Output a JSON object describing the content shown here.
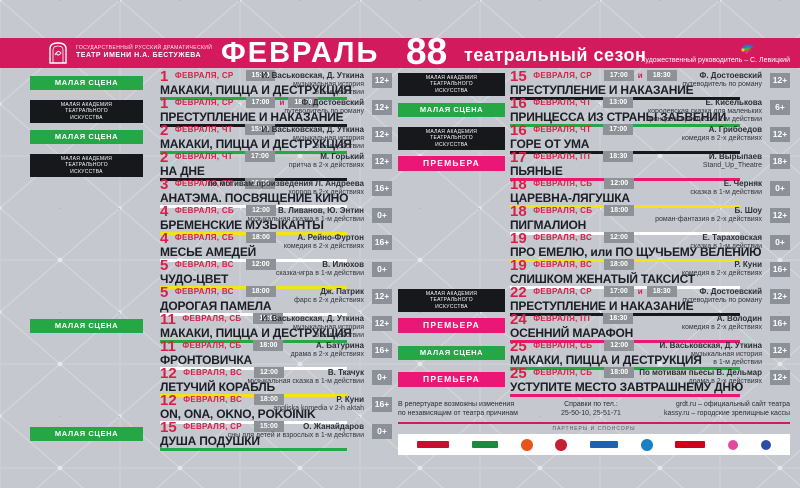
{
  "header": {
    "theater_name_line1": "ГОСУДАРСТВЕННЫЙ РУССКИЙ ДРАМАТИЧЕСКИЙ",
    "theater_name_line2": "ТЕАТР ИМЕНИ Н.А. БЕСТУЖЕВА",
    "month": "ФЕВРАЛЬ",
    "season_number": "88",
    "season_label": "театральный сезон",
    "director_note": "Художественный руководитель – С. Левицкий"
  },
  "labels": {
    "small_stage": "МАЛАЯ СЦЕНА",
    "academy": "МАЛАЯ АКАДЕМИЯ\nТЕАТРАЛЬНОГО\nИСКУССТВА",
    "premiere": "ПРЕМЬЕРА"
  },
  "time_joiner": "и",
  "colors": {
    "header_bar": "#d21a5c",
    "date_red": "#d91f47",
    "small_stage_green": "#25a746",
    "premiere_pink": "#ea1777",
    "academy_black": "#17181c",
    "underline": {
      "green": "#25a746",
      "black": "#17181c",
      "white": "#ffffff",
      "yellow": "#f3e318",
      "pink": "#ea1777"
    }
  },
  "columns": {
    "left": [
      {
        "day": "1",
        "date_suffix": "ФЕВРАЛЯ, СР",
        "times": [
          "15:00"
        ],
        "title": "МАКАКИ, ПИЦЦА И ДЕСТРУКЦИЯ",
        "author": "И. Васьковская, Д. Уткина",
        "desc": "музыкальная история\nв 1-м действии",
        "age": "12+",
        "tag": "small_stage",
        "underline": "green"
      },
      {
        "day": "1",
        "date_suffix": "ФЕВРАЛЯ, СР",
        "times": [
          "17:00",
          "18:30"
        ],
        "title": "ПРЕСТУПЛЕНИЕ И НАКАЗАНИЕ",
        "author": "Ф. Достоевский",
        "desc": "путеводитель по роману",
        "age": "12+",
        "tag": "academy",
        "underline": "black"
      },
      {
        "day": "2",
        "date_suffix": "ФЕВРАЛЯ, ЧТ",
        "times": [
          "15:00"
        ],
        "title": "МАКАКИ, ПИЦЦА И ДЕСТРУКЦИЯ",
        "author": "И. Васьковская, Д. Уткина",
        "desc": "музыкальная история\nв 1-м действии",
        "age": "12+",
        "tag": "small_stage",
        "underline": "green"
      },
      {
        "day": "2",
        "date_suffix": "ФЕВРАЛЯ, ЧТ",
        "times": [
          "17:00"
        ],
        "title": "НА ДНЕ",
        "author": "М. Горький",
        "desc": "притча в 2-х действиях",
        "age": "12+",
        "tag": "academy",
        "underline": "black"
      },
      {
        "day": "3",
        "date_suffix": "ФЕВРАЛЯ, ПТ",
        "times": [
          "18:30"
        ],
        "title": "АНАТЭМА. ПОСВЯЩЕНИЕ КИНО",
        "author": "по мотивам произведения Л. Андреева",
        "desc": "хоррор в 2-х действиях",
        "age": "16+",
        "tag": null,
        "underline": "white"
      },
      {
        "day": "4",
        "date_suffix": "ФЕВРАЛЯ, СБ",
        "times": [
          "12:00"
        ],
        "title": "БРЕМЕНСКИЕ МУЗЫКАНТЫ",
        "author": "В. Ливанов, Ю. Энтин",
        "desc": "музыкальная сказка в 1-м действии",
        "age": "0+",
        "tag": null,
        "underline": "yellow"
      },
      {
        "day": "4",
        "date_suffix": "ФЕВРАЛЯ, СБ",
        "times": [
          "18:00"
        ],
        "title": "МЕСЬЕ АМЕДЕЙ",
        "author": "А. Рейно-Фуртон",
        "desc": "комедия в 2-х действиях",
        "age": "16+",
        "tag": null,
        "underline": "white"
      },
      {
        "day": "5",
        "date_suffix": "ФЕВРАЛЯ, ВС",
        "times": [
          "12:00"
        ],
        "title": "ЧУДО-ЦВЕТ",
        "author": "В. Илюхов",
        "desc": "сказка-игра в 1-м действии",
        "age": "0+",
        "tag": null,
        "underline": "yellow"
      },
      {
        "day": "5",
        "date_suffix": "ФЕВРАЛЯ, ВС",
        "times": [
          "18:00"
        ],
        "title": "ДОРОГАЯ ПАМЕЛА",
        "author": "Дж. Патрик",
        "desc": "фарс в 2-х действиях",
        "age": "12+",
        "tag": null,
        "underline": "white"
      },
      {
        "day": "11",
        "date_suffix": "ФЕВРАЛЯ, СБ",
        "times": [
          "12:00"
        ],
        "title": "МАКАКИ, ПИЦЦА И ДЕСТРУКЦИЯ",
        "author": "И. Васьковская, Д. Уткина",
        "desc": "музыкальная история\nв 1-м действии",
        "age": "12+",
        "tag": "small_stage",
        "underline": "green"
      },
      {
        "day": "11",
        "date_suffix": "ФЕВРАЛЯ, СБ",
        "times": [
          "18:00"
        ],
        "title": "ФРОНТОВИЧКА",
        "author": "А. Батурина",
        "desc": "драма в 2-х действиях",
        "age": "16+",
        "tag": null,
        "underline": "white"
      },
      {
        "day": "12",
        "date_suffix": "ФЕВРАЛЯ, ВС",
        "times": [
          "12:00"
        ],
        "title": "ЛЕТУЧИЙ КОРАБЛЬ",
        "author": "В. Ткачук",
        "desc": "музыкальная сказка в 1-м действии",
        "age": "0+",
        "tag": null,
        "underline": "yellow"
      },
      {
        "day": "12",
        "date_suffix": "ФЕВРАЛЯ, ВС",
        "times": [
          "18:00"
        ],
        "title": "ON, ONA, OKNO, POKOINIK",
        "author": "Р. Куни",
        "desc": "angliska komedia v 2-h aktah",
        "age": "16+",
        "tag": null,
        "underline": "white"
      },
      {
        "day": "15",
        "date_suffix": "ФЕВРАЛЯ, СР",
        "times": [
          "15:00"
        ],
        "title": "ДУША ПОДУШКИ",
        "author": "О. Жанайдаров",
        "desc": "сны для детей и взрослых в 1-м действии",
        "age": "0+",
        "tag": "small_stage",
        "underline": "green"
      }
    ],
    "right": [
      {
        "day": "15",
        "date_suffix": "ФЕВРАЛЯ, СР",
        "times": [
          "17:00",
          "18:30"
        ],
        "title": "ПРЕСТУПЛЕНИЕ И НАКАЗАНИЕ",
        "author": "Ф. Достоевский",
        "desc": "путеводитель по роману",
        "age": "12+",
        "tag": "academy",
        "underline": "black"
      },
      {
        "day": "16",
        "date_suffix": "ФЕВРАЛЯ, ЧТ",
        "times": [
          "13:00"
        ],
        "title": "ПРИНЦЕССА ИЗ СТРАНЫ ЗАБВЕНИИ",
        "author": "Е. Киселькова",
        "desc": "королевская сказка для маленьких\nпринцев и принцесс в 1-м действии",
        "age": "6+",
        "tag": "small_stage",
        "underline": "green"
      },
      {
        "day": "16",
        "date_suffix": "ФЕВРАЛЯ, ЧТ",
        "times": [
          "17:00"
        ],
        "title": "ГОРЕ ОТ УМА",
        "author": "А. Грибоедов",
        "desc": "комедия в 2-х действиях",
        "age": "12+",
        "tag": "academy",
        "underline": "black"
      },
      {
        "day": "17",
        "date_suffix": "ФЕВРАЛЯ, ПТ",
        "times": [
          "18:30"
        ],
        "title": "ПЬЯНЫЕ",
        "author": "И. Вырыпаев",
        "desc": "Stand_Up_Theatre",
        "age": "18+",
        "tag": "premiere",
        "underline": "pink"
      },
      {
        "day": "18",
        "date_suffix": "ФЕВРАЛЯ, СБ",
        "times": [
          "12:00"
        ],
        "title": "ЦАРЕВНА-ЛЯГУШКА",
        "author": "Е. Черняк",
        "desc": "сказка в 1-м действии",
        "age": "0+",
        "tag": null,
        "underline": "yellow"
      },
      {
        "day": "18",
        "date_suffix": "ФЕВРАЛЯ, СБ",
        "times": [
          "18:00"
        ],
        "title": "ПИГМАЛИОН",
        "author": "Б. Шоу",
        "desc": "роман-фантазия в 2-х действиях",
        "age": "12+",
        "tag": null,
        "underline": "white"
      },
      {
        "day": "19",
        "date_suffix": "ФЕВРАЛЯ, ВС",
        "times": [
          "12:00"
        ],
        "title": "ПРО ЕМЕЛЮ, или ПО ЩУЧЬЕМУ ВЕЛЕНИЮ",
        "author": "Е. Тараховская",
        "desc": "сказка в 1-м действии",
        "age": "0+",
        "tag": null,
        "underline": "yellow"
      },
      {
        "day": "19",
        "date_suffix": "ФЕВРАЛЯ, ВС",
        "times": [
          "18:00"
        ],
        "title": "СЛИШКОМ ЖЕНАТЫЙ ТАКСИСТ",
        "author": "Р. Куни",
        "desc": "комедия в 2-х действиях",
        "age": "16+",
        "tag": null,
        "underline": "white"
      },
      {
        "day": "22",
        "date_suffix": "ФЕВРАЛЯ, СР",
        "times": [
          "17:00",
          "18:30"
        ],
        "title": "ПРЕСТУПЛЕНИЕ И НАКАЗАНИЕ",
        "author": "Ф. Достоевский",
        "desc": "путеводитель по роману",
        "age": "12+",
        "tag": "academy",
        "underline": "black"
      },
      {
        "day": "24",
        "date_suffix": "ФЕВРАЛЯ, ПТ",
        "times": [
          "18:30"
        ],
        "title": "ОСЕННИЙ МАРАФОН",
        "author": "А. Володин",
        "desc": "комедия в 2-х действиях",
        "age": "16+",
        "tag": "premiere",
        "underline": "pink"
      },
      {
        "day": "25",
        "date_suffix": "ФЕВРАЛЯ, СБ",
        "times": [
          "12:00"
        ],
        "title": "МАКАКИ, ПИЦЦА И ДЕСТРУКЦИЯ",
        "author": "И. Васьковская, Д. Уткина",
        "desc": "музыкальная история\nв 1-м действии",
        "age": "12+",
        "tag": "small_stage",
        "underline": "green"
      },
      {
        "day": "25",
        "date_suffix": "ФЕВРАЛЯ, СБ",
        "times": [
          "18:00"
        ],
        "title": "УСТУПИТЕ МЕСТО ЗАВТРАШНЕМУ ДНЮ",
        "author": "По мотивам пьесы В. Дельмар",
        "desc": "драма в 2-х действиях",
        "age": "12+",
        "tag": "premiere",
        "underline": "pink"
      }
    ]
  },
  "footer": {
    "note": "В репертуаре возможны изменения\nпо независящим от театра причинам",
    "phones": "Справки по тел.:\n25-50-10, 25-51-71",
    "sites": "grdt.ru – официальный сайт театра\nkassy.ru – городские зрелищные кассы",
    "partners_label": "ПАРТНЕРЫ И СПОНСОРЫ",
    "sponsor_logos": [
      {
        "name": "sponsor-red-wordmark",
        "shape": "rect",
        "color": "#c8102e",
        "w": 32
      },
      {
        "name": "sponsor-green-emblem",
        "shape": "rect",
        "color": "#1e8a3c",
        "w": 26
      },
      {
        "name": "sponsor-orange-circle",
        "shape": "circ",
        "color": "#e8541d",
        "w": 12
      },
      {
        "name": "sponsor-red-circle",
        "shape": "circ",
        "color": "#c42033",
        "w": 12
      },
      {
        "name": "sponsor-blue-wordmark",
        "shape": "rect",
        "color": "#1f63ae",
        "w": 28
      },
      {
        "name": "sponsor-blue-circle",
        "shape": "circ",
        "color": "#1b7fc4",
        "w": 12
      },
      {
        "name": "sponsor-red-banner",
        "shape": "rect",
        "color": "#d0021b",
        "w": 30
      },
      {
        "name": "sponsor-pink-oval",
        "shape": "circ",
        "color": "#e24b9c",
        "w": 10
      },
      {
        "name": "sponsor-navy-mark",
        "shape": "circ",
        "color": "#2b4ea2",
        "w": 10
      }
    ]
  }
}
